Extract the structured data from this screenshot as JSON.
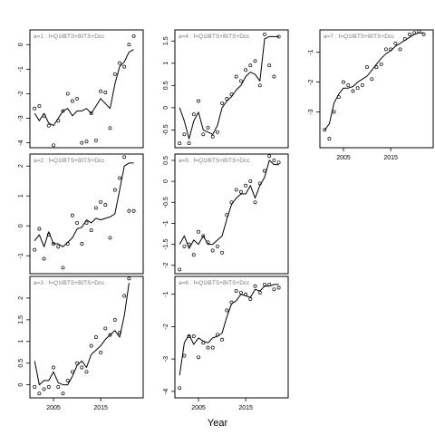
{
  "xlabel": "Year",
  "chart_data": [
    {
      "type": "scatter",
      "title": "a=1  :  f=Q1IBTS+BITS+Dcc",
      "yticks": [
        0,
        -1,
        -2,
        -3,
        -4
      ],
      "ylim": [
        -4.2,
        0.6
      ],
      "xlim": [
        2000,
        2024
      ],
      "x": [
        2001,
        2002,
        2003,
        2004,
        2005,
        2006,
        2007,
        2008,
        2009,
        2010,
        2011,
        2012,
        2013,
        2014,
        2015,
        2016,
        2017,
        2018,
        2019,
        2020,
        2021,
        2022
      ],
      "observed": [
        -2.6,
        -2.5,
        -2.9,
        -3.3,
        -4.1,
        -3.1,
        -2.7,
        -2.0,
        -2.3,
        -2.2,
        -4.0,
        -3.95,
        -2.8,
        -3.9,
        -1.9,
        -1.95,
        -3.4,
        -1.2,
        -0.75,
        -0.9,
        0.0,
        0.35
      ],
      "fitted": [
        -2.8,
        -3.1,
        -2.8,
        -3.2,
        -3.3,
        -3.0,
        -2.7,
        -2.6,
        -2.9,
        -2.7,
        -2.7,
        -2.6,
        -2.8,
        -2.5,
        -2.2,
        -2.4,
        -2.6,
        -1.6,
        -0.9,
        -0.7,
        -0.3,
        -0.2
      ]
    },
    {
      "type": "scatter",
      "title": "a=2  :  f=Q1IBTS+BITS+Dcc",
      "yticks": [
        2,
        1,
        0,
        -1
      ],
      "ylim": [
        -1.6,
        2.4
      ],
      "xlim": [
        2000,
        2024
      ],
      "x": [
        2001,
        2002,
        2003,
        2004,
        2005,
        2006,
        2007,
        2008,
        2009,
        2010,
        2011,
        2012,
        2013,
        2014,
        2015,
        2016,
        2017,
        2018,
        2019,
        2020,
        2021,
        2022
      ],
      "observed": [
        -0.8,
        -0.1,
        -1.1,
        -0.3,
        -0.6,
        -0.7,
        -1.4,
        -0.6,
        0.35,
        0.1,
        -0.6,
        0.1,
        -0.15,
        0.6,
        0.8,
        0.7,
        -0.4,
        1.2,
        1.6,
        2.3,
        0.5,
        0.5
      ],
      "fitted": [
        -0.5,
        -0.3,
        -0.7,
        -0.2,
        -0.6,
        -0.6,
        -0.7,
        -0.55,
        -0.4,
        -0.1,
        -0.05,
        0.2,
        0.1,
        0.25,
        0.2,
        0.25,
        0.3,
        0.4,
        1.2,
        2.0,
        2.1,
        2.1
      ]
    },
    {
      "type": "scatter",
      "title": "a=3  :  f=Q1IBTS+BITS+Dcc",
      "yticks": [
        2.0,
        1.5,
        1.0,
        0.5,
        0.0
      ],
      "ylim": [
        -0.3,
        2.5
      ],
      "xlim": [
        2000,
        2024
      ],
      "x": [
        2001,
        2002,
        2003,
        2004,
        2005,
        2006,
        2007,
        2008,
        2009,
        2010,
        2011,
        2012,
        2013,
        2014,
        2015,
        2016,
        2017,
        2018,
        2019,
        2020,
        2021
      ],
      "observed": [
        -0.05,
        -0.2,
        -0.1,
        -0.05,
        0.4,
        -0.05,
        -0.2,
        0.1,
        0.3,
        0.5,
        0.4,
        0.3,
        0.9,
        1.1,
        0.75,
        1.3,
        1.15,
        1.5,
        1.2,
        2.05,
        2.45
      ],
      "fitted": [
        0.55,
        0.0,
        0.1,
        0.1,
        0.3,
        0.05,
        0.0,
        0.0,
        0.2,
        0.45,
        0.55,
        0.4,
        0.7,
        0.8,
        0.9,
        1.05,
        1.15,
        1.25,
        1.1,
        1.6,
        2.35
      ]
    },
    {
      "type": "scatter",
      "title": "a=4  :  f=Q1IBTS+BITS+Dcc",
      "yticks": [
        1.5,
        1.0,
        0.5,
        0.0,
        -0.5
      ],
      "ylim": [
        -0.9,
        1.75
      ],
      "xlim": [
        2000,
        2024
      ],
      "x": [
        2001,
        2002,
        2003,
        2004,
        2005,
        2006,
        2007,
        2008,
        2009,
        2010,
        2011,
        2012,
        2013,
        2014,
        2015,
        2016,
        2017,
        2018,
        2019,
        2020,
        2021,
        2022
      ],
      "observed": [
        -0.8,
        -0.6,
        -0.8,
        -0.15,
        0.15,
        -0.6,
        -0.45,
        -0.65,
        -0.55,
        0.1,
        0.2,
        0.3,
        0.7,
        0.6,
        0.85,
        0.95,
        1.05,
        0.5,
        1.65,
        0.95,
        0.7,
        1.6
      ],
      "fitted": [
        0.0,
        -0.3,
        -0.7,
        -0.3,
        -0.1,
        -0.5,
        -0.55,
        -0.6,
        -0.4,
        0.0,
        0.15,
        0.25,
        0.4,
        0.5,
        0.7,
        0.8,
        0.75,
        0.6,
        1.55,
        1.6,
        1.6,
        1.6
      ]
    },
    {
      "type": "scatter",
      "title": "a=5  :  f=Q1IBTS+BITS+Dcc",
      "yticks": [
        0.5,
        0.0,
        -0.5,
        -1.0,
        -1.5,
        -2.0
      ],
      "ylim": [
        -2.2,
        0.65
      ],
      "xlim": [
        2000,
        2024
      ],
      "x": [
        2001,
        2002,
        2003,
        2004,
        2005,
        2006,
        2007,
        2008,
        2009,
        2010,
        2011,
        2012,
        2013,
        2014,
        2015,
        2016,
        2017,
        2018,
        2019,
        2020,
        2021,
        2022
      ],
      "observed": [
        -2.1,
        -1.55,
        -1.5,
        -1.75,
        -1.2,
        -1.3,
        -1.45,
        -1.65,
        -1.55,
        -1.7,
        -0.8,
        -0.5,
        -0.2,
        -0.25,
        -0.1,
        0.0,
        -0.5,
        -0.05,
        0.25,
        0.6,
        0.5,
        0.45
      ],
      "fitted": [
        -1.5,
        -1.3,
        -1.6,
        -1.4,
        -1.5,
        -1.3,
        -1.5,
        -1.5,
        -1.4,
        -1.3,
        -0.9,
        -0.55,
        -0.4,
        -0.3,
        -0.3,
        -0.1,
        -0.4,
        -0.1,
        0.1,
        0.5,
        0.4,
        0.4
      ]
    },
    {
      "type": "scatter",
      "title": "a=6  :  f=Q1IBTS+BITS+Dcc",
      "yticks": [
        -1.0,
        -2.0,
        -3.0,
        -4.0
      ],
      "ylim": [
        -4.2,
        -0.45
      ],
      "xlim": [
        2000,
        2024
      ],
      "x": [
        2001,
        2002,
        2003,
        2004,
        2005,
        2006,
        2007,
        2008,
        2009,
        2010,
        2011,
        2012,
        2013,
        2014,
        2015,
        2016,
        2017,
        2018,
        2019,
        2020,
        2021,
        2022
      ],
      "observed": [
        -3.9,
        -2.9,
        -2.3,
        -2.3,
        -2.95,
        -2.5,
        -2.65,
        -2.65,
        -2.25,
        -2.4,
        -1.5,
        -1.25,
        -0.9,
        -0.95,
        -1.0,
        -1.15,
        -0.75,
        -0.95,
        -0.7,
        -0.7,
        -0.85,
        -0.8
      ],
      "fitted": [
        -3.5,
        -2.5,
        -2.25,
        -2.55,
        -2.35,
        -2.45,
        -2.5,
        -2.35,
        -2.3,
        -2.2,
        -1.7,
        -1.3,
        -1.2,
        -1.0,
        -1.05,
        -1.1,
        -0.85,
        -0.9,
        -0.75,
        -0.75,
        -0.7,
        -0.7
      ]
    },
    {
      "type": "scatter",
      "title": "a=7  :  f=Q1IBTS+BITS+Dcc",
      "yticks": [
        -1,
        -2,
        -3
      ],
      "ylim": [
        -4.2,
        -0.25
      ],
      "xlim": [
        2000,
        2024
      ],
      "x": [
        2001,
        2002,
        2003,
        2004,
        2005,
        2006,
        2007,
        2008,
        2009,
        2010,
        2011,
        2012,
        2013,
        2014,
        2015,
        2016,
        2017,
        2018,
        2019,
        2020,
        2021,
        2022
      ],
      "observed": [
        -3.6,
        -3.9,
        -3.0,
        -2.5,
        -2.0,
        -2.1,
        -2.3,
        -2.2,
        -2.1,
        -1.5,
        -1.9,
        -1.5,
        -1.4,
        -0.9,
        -0.9,
        -0.7,
        -0.9,
        -0.55,
        -0.4,
        -0.35,
        -0.3,
        -0.4
      ],
      "fitted": [
        -3.6,
        -3.4,
        -2.7,
        -2.4,
        -2.2,
        -2.2,
        -2.15,
        -2.0,
        -1.9,
        -1.8,
        -1.6,
        -1.4,
        -1.2,
        -1.05,
        -0.95,
        -0.8,
        -0.7,
        -0.6,
        -0.5,
        -0.4,
        -0.35,
        -0.35
      ]
    }
  ],
  "xticks": [
    2005,
    2015
  ]
}
